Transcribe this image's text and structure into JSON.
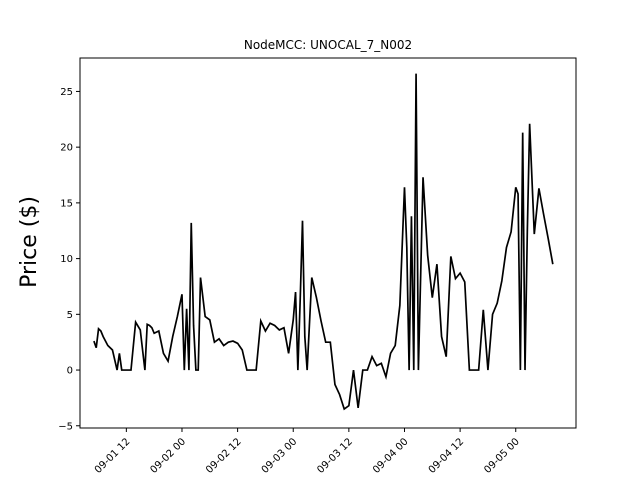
{
  "chart_data": {
    "type": "line",
    "title": "NodeMCC: UNOCAL_7_N002",
    "xlabel": "",
    "ylabel": "Price ($)",
    "x_unit": "datetime",
    "x_range": [
      "2020-09-01 02:00",
      "2020-09-05 13:00"
    ],
    "ylim": [
      -5.2,
      28
    ],
    "x_ticks": [
      {
        "value": "2020-09-01 12:00",
        "label": "09-01 12"
      },
      {
        "value": "2020-09-02 00:00",
        "label": "09-02 00"
      },
      {
        "value": "2020-09-02 12:00",
        "label": "09-02 12"
      },
      {
        "value": "2020-09-03 00:00",
        "label": "09-03 00"
      },
      {
        "value": "2020-09-03 12:00",
        "label": "09-03 12"
      },
      {
        "value": "2020-09-04 00:00",
        "label": "09-04 00"
      },
      {
        "value": "2020-09-04 12:00",
        "label": "09-04 12"
      },
      {
        "value": "2020-09-05 00:00",
        "label": "09-05 00"
      }
    ],
    "y_ticks": [
      -5,
      0,
      5,
      10,
      15,
      20,
      25
    ],
    "grid": false,
    "legend": null,
    "line_color": "#000000",
    "series": [
      {
        "name": "",
        "x": [
          "2020-09-01 05:00",
          "2020-09-01 05:30",
          "2020-09-01 06:00",
          "2020-09-01 06:30",
          "2020-09-01 07:00",
          "2020-09-01 08:00",
          "2020-09-01 09:00",
          "2020-09-01 10:00",
          "2020-09-01 10:30",
          "2020-09-01 11:00",
          "2020-09-01 11:30",
          "2020-09-01 12:00",
          "2020-09-01 12:30",
          "2020-09-01 13:00",
          "2020-09-01 14:00",
          "2020-09-01 15:00",
          "2020-09-01 16:00",
          "2020-09-01 16:30",
          "2020-09-01 17:00",
          "2020-09-01 17:30",
          "2020-09-01 18:00",
          "2020-09-01 19:00",
          "2020-09-01 20:00",
          "2020-09-01 21:00",
          "2020-09-01 22:00",
          "2020-09-01 23:00",
          "2020-09-02 00:00",
          "2020-09-02 00:30",
          "2020-09-02 01:00",
          "2020-09-02 01:30",
          "2020-09-02 02:00",
          "2020-09-02 02:30",
          "2020-09-02 03:00",
          "2020-09-02 03:30",
          "2020-09-02 04:00",
          "2020-09-02 05:00",
          "2020-09-02 06:00",
          "2020-09-02 07:00",
          "2020-09-02 08:00",
          "2020-09-02 09:00",
          "2020-09-02 10:00",
          "2020-09-02 11:00",
          "2020-09-02 12:00",
          "2020-09-02 13:00",
          "2020-09-02 14:00",
          "2020-09-02 15:00",
          "2020-09-02 16:00",
          "2020-09-02 17:00",
          "2020-09-02 18:00",
          "2020-09-02 19:00",
          "2020-09-02 20:00",
          "2020-09-02 21:00",
          "2020-09-02 22:00",
          "2020-09-02 23:00",
          "2020-09-03 00:00",
          "2020-09-03 00:30",
          "2020-09-03 01:00",
          "2020-09-03 01:30",
          "2020-09-03 02:00",
          "2020-09-03 02:30",
          "2020-09-03 03:00",
          "2020-09-03 04:00",
          "2020-09-03 05:00",
          "2020-09-03 06:00",
          "2020-09-03 07:00",
          "2020-09-03 08:00",
          "2020-09-03 09:00",
          "2020-09-03 10:00",
          "2020-09-03 11:00",
          "2020-09-03 12:00",
          "2020-09-03 13:00",
          "2020-09-03 14:00",
          "2020-09-03 15:00",
          "2020-09-03 16:00",
          "2020-09-03 17:00",
          "2020-09-03 18:00",
          "2020-09-03 19:00",
          "2020-09-03 20:00",
          "2020-09-03 21:00",
          "2020-09-03 22:00",
          "2020-09-03 23:00",
          "2020-09-04 00:00",
          "2020-09-04 00:30",
          "2020-09-04 01:00",
          "2020-09-04 01:30",
          "2020-09-04 02:00",
          "2020-09-04 02:30",
          "2020-09-04 03:00",
          "2020-09-04 04:00",
          "2020-09-04 05:00",
          "2020-09-04 06:00",
          "2020-09-04 07:00",
          "2020-09-04 08:00",
          "2020-09-04 09:00",
          "2020-09-04 10:00",
          "2020-09-04 11:00",
          "2020-09-04 12:00",
          "2020-09-04 13:00",
          "2020-09-04 14:00",
          "2020-09-04 15:00",
          "2020-09-04 16:00",
          "2020-09-04 17:00",
          "2020-09-04 18:00",
          "2020-09-04 19:00",
          "2020-09-04 20:00",
          "2020-09-04 21:00",
          "2020-09-04 22:00",
          "2020-09-04 23:00",
          "2020-09-05 00:00",
          "2020-09-05 00:30",
          "2020-09-05 01:00",
          "2020-09-05 01:30",
          "2020-09-05 02:00",
          "2020-09-05 02:30",
          "2020-09-05 03:00",
          "2020-09-05 04:00",
          "2020-09-05 05:00",
          "2020-09-05 06:00",
          "2020-09-05 07:00",
          "2020-09-05 08:00"
        ],
        "y": [
          2.6,
          2.0,
          3.7,
          3.5,
          3.0,
          2.2,
          1.8,
          0.0,
          1.5,
          0.0,
          0.0,
          0.0,
          0.0,
          0.0,
          4.3,
          3.6,
          0.0,
          4.1,
          4.0,
          3.8,
          3.3,
          3.5,
          1.5,
          0.8,
          3.0,
          4.8,
          6.8,
          0.0,
          5.5,
          0.0,
          13.2,
          4.0,
          0.0,
          0.0,
          8.3,
          4.8,
          4.5,
          2.5,
          2.8,
          2.2,
          2.5,
          2.6,
          2.4,
          1.8,
          0.0,
          0.0,
          0.0,
          4.4,
          3.5,
          4.2,
          4.0,
          3.6,
          3.8,
          1.5,
          4.5,
          7.0,
          0.0,
          6.3,
          13.4,
          3.0,
          0.0,
          8.3,
          6.5,
          4.4,
          2.5,
          2.5,
          -1.3,
          -2.2,
          -3.5,
          -3.2,
          0.0,
          -3.4,
          0.0,
          0.0,
          1.2,
          0.4,
          0.6,
          -0.6,
          1.5,
          2.2,
          5.8,
          16.4,
          11.0,
          0.0,
          13.8,
          0.0,
          26.6,
          0.0,
          17.3,
          10.3,
          6.5,
          9.5,
          3.0,
          1.2,
          10.2,
          8.2,
          8.7,
          7.9,
          0.0,
          0.0,
          0.0,
          5.4,
          0.0,
          5.0,
          6.0,
          8.0,
          11.0,
          12.4,
          16.4,
          15.8,
          0.0,
          21.3,
          0.0,
          12.5,
          22.1,
          12.2,
          16.3,
          14.0,
          11.8,
          9.5
        ]
      }
    ]
  }
}
